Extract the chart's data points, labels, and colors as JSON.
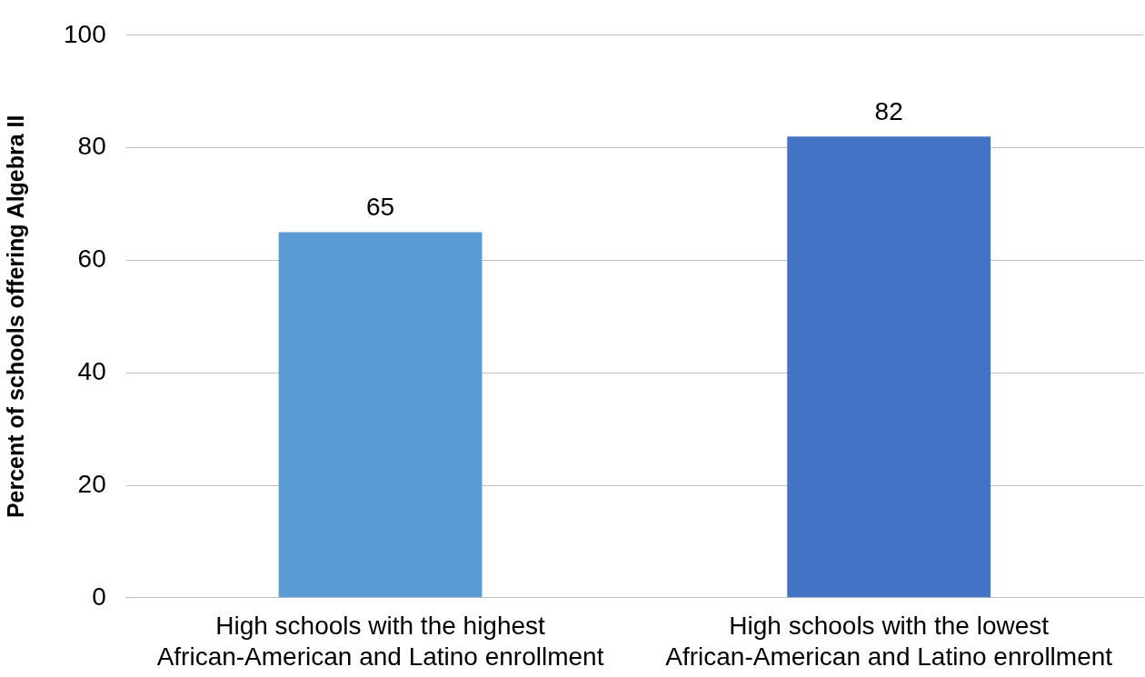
{
  "chart_data": {
    "type": "bar",
    "ylabel": "Percent of schools offering Algebra II",
    "categories": [
      "High schools with the highest African-American and Latino enrollment",
      "High schools with the lowest African-American and Latino enrollment"
    ],
    "values": [
      65,
      82
    ],
    "colors": [
      "#5b9bd5",
      "#4472c4"
    ],
    "ylim": [
      0,
      100
    ],
    "yticks": [
      0,
      20,
      40,
      60,
      80,
      100
    ],
    "grid": "y",
    "data_labels": true,
    "legend": false
  }
}
